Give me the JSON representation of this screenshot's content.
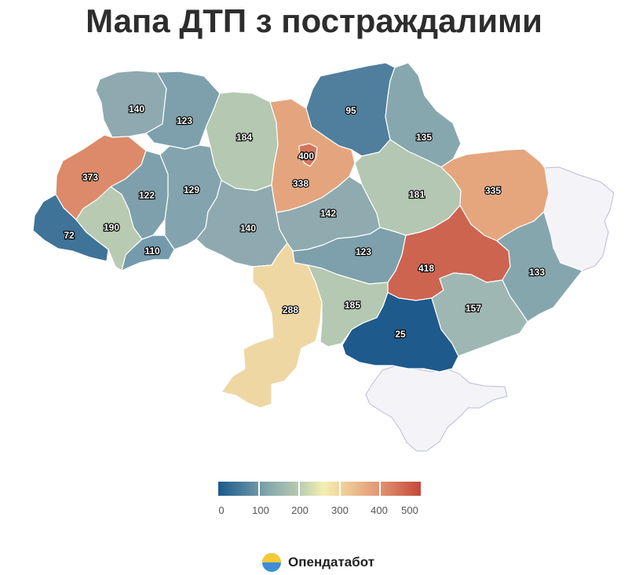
{
  "title": "Мапа ДТП з постраждалими",
  "map_data": {
    "value_range": [
      0,
      500
    ],
    "no_data_color": "#f4f4f8",
    "regions": [
      {
        "key": "volyn",
        "value": 140,
        "color": "#8eaab0"
      },
      {
        "key": "rivne",
        "value": 123,
        "color": "#7da0ac"
      },
      {
        "key": "zhytomyr",
        "value": 184,
        "color": "#b5c8b2"
      },
      {
        "key": "kyiv_oblast",
        "value": 338,
        "color": "#e4a57e"
      },
      {
        "key": "kyiv_city",
        "value": 400,
        "color": "#d1765a"
      },
      {
        "key": "chernihiv",
        "value": 95,
        "color": "#4f7f9d"
      },
      {
        "key": "sumy",
        "value": 135,
        "color": "#87a7ae"
      },
      {
        "key": "lviv",
        "value": 373,
        "color": "#dc8a69"
      },
      {
        "key": "ternopil",
        "value": 122,
        "color": "#7ea0ad"
      },
      {
        "key": "khmelnytskyi",
        "value": 129,
        "color": "#83a4ae"
      },
      {
        "key": "zakarpattia",
        "value": 72,
        "color": "#3f7398"
      },
      {
        "key": "ivano_frankivsk",
        "value": 190,
        "color": "#b8cab1"
      },
      {
        "key": "chernivtsi",
        "value": 110,
        "color": "#749bab"
      },
      {
        "key": "vinnytsia",
        "value": 140,
        "color": "#8eaab0"
      },
      {
        "key": "cherkasy",
        "value": 142,
        "color": "#8fabb0"
      },
      {
        "key": "poltava",
        "value": 181,
        "color": "#b3c7b2"
      },
      {
        "key": "kharkiv",
        "value": 335,
        "color": "#e5a67d"
      },
      {
        "key": "kirovohrad",
        "value": 123,
        "color": "#7da0ac"
      },
      {
        "key": "dnipropetrovsk",
        "value": 418,
        "color": "#cd6450"
      },
      {
        "key": "luhansk",
        "value": 133,
        "color": "#86a6ae"
      },
      {
        "key": "odesa",
        "value": 288,
        "color": "#efd7a4"
      },
      {
        "key": "mykolaiv",
        "value": 185,
        "color": "#b5c8b2"
      },
      {
        "key": "kherson",
        "value": 25,
        "color": "#1e5a8c"
      },
      {
        "key": "zaporizhzhia",
        "value": 157,
        "color": "#9fb7b2"
      },
      {
        "key": "donetsk",
        "value": null,
        "color": "#f4f4f8"
      },
      {
        "key": "crimea",
        "value": null,
        "color": "#f4f4f8"
      }
    ]
  },
  "legend": {
    "ticks": [
      "0",
      "100",
      "200",
      "300",
      "400",
      "500"
    ],
    "gradient": [
      "#1c5a8a",
      "#86a8aa",
      "#f4efb1",
      "#e29c76",
      "#c5473b"
    ]
  },
  "brand": {
    "name": "Опендатабот",
    "logo_colors": [
      "#f6c936",
      "#3d8ed8"
    ]
  }
}
